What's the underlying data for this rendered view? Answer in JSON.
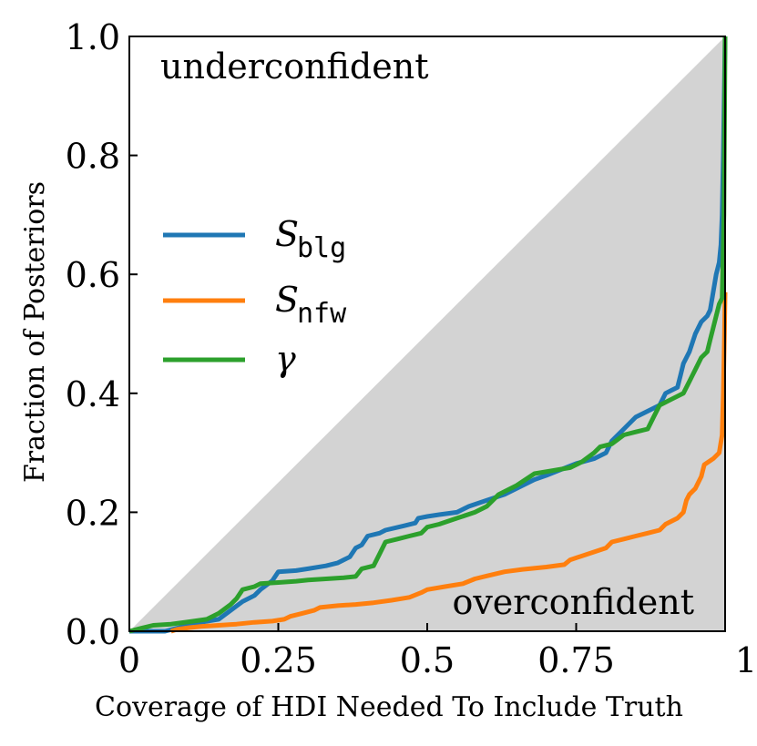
{
  "chart_data": {
    "type": "line",
    "title": "",
    "xlabel": "Coverage of HDI Needed To Include Truth",
    "ylabel": "Fraction of Posteriors",
    "xlim": [
      0,
      1
    ],
    "ylim": [
      0,
      1
    ],
    "x_ticks": [
      {
        "value": 0,
        "label": "0"
      },
      {
        "value": 0.25,
        "label": "0.25"
      },
      {
        "value": 0.5,
        "label": "0.5"
      },
      {
        "value": 0.75,
        "label": "0.75"
      },
      {
        "value": 1,
        "label": "1"
      }
    ],
    "y_ticks": [
      {
        "value": 0,
        "label": "0.0"
      },
      {
        "value": 0.2,
        "label": "0.2"
      },
      {
        "value": 0.4,
        "label": "0.4"
      },
      {
        "value": 0.6,
        "label": "0.6"
      },
      {
        "value": 0.8,
        "label": "0.8"
      },
      {
        "value": 1,
        "label": "1.0"
      }
    ],
    "grid": false,
    "legend_position": "center-left",
    "annotations": {
      "upper": "underconfident",
      "lower": "overconfident"
    },
    "series": [
      {
        "name": "S_blg",
        "label_main": "S",
        "label_sub": "blg",
        "color": "#1f77b4",
        "points": [
          [
            0,
            0
          ],
          [
            0.06,
            0
          ],
          [
            0.08,
            0.005
          ],
          [
            0.1,
            0.01
          ],
          [
            0.12,
            0.015
          ],
          [
            0.15,
            0.02
          ],
          [
            0.17,
            0.035
          ],
          [
            0.19,
            0.05
          ],
          [
            0.21,
            0.06
          ],
          [
            0.22,
            0.07
          ],
          [
            0.24,
            0.085
          ],
          [
            0.25,
            0.1
          ],
          [
            0.28,
            0.102
          ],
          [
            0.3,
            0.105
          ],
          [
            0.33,
            0.11
          ],
          [
            0.35,
            0.115
          ],
          [
            0.36,
            0.12
          ],
          [
            0.37,
            0.125
          ],
          [
            0.38,
            0.14
          ],
          [
            0.39,
            0.145
          ],
          [
            0.4,
            0.16
          ],
          [
            0.42,
            0.165
          ],
          [
            0.43,
            0.17
          ],
          [
            0.46,
            0.177
          ],
          [
            0.48,
            0.182
          ],
          [
            0.485,
            0.19
          ],
          [
            0.5,
            0.193
          ],
          [
            0.52,
            0.196
          ],
          [
            0.55,
            0.2
          ],
          [
            0.56,
            0.205
          ],
          [
            0.57,
            0.21
          ],
          [
            0.6,
            0.22
          ],
          [
            0.63,
            0.23
          ],
          [
            0.66,
            0.245
          ],
          [
            0.68,
            0.255
          ],
          [
            0.7,
            0.262
          ],
          [
            0.72,
            0.27
          ],
          [
            0.75,
            0.282
          ],
          [
            0.78,
            0.29
          ],
          [
            0.8,
            0.3
          ],
          [
            0.81,
            0.32
          ],
          [
            0.83,
            0.34
          ],
          [
            0.85,
            0.36
          ],
          [
            0.87,
            0.37
          ],
          [
            0.89,
            0.38
          ],
          [
            0.9,
            0.4
          ],
          [
            0.91,
            0.405
          ],
          [
            0.92,
            0.41
          ],
          [
            0.925,
            0.43
          ],
          [
            0.93,
            0.45
          ],
          [
            0.94,
            0.47
          ],
          [
            0.95,
            0.5
          ],
          [
            0.96,
            0.52
          ],
          [
            0.97,
            0.53
          ],
          [
            0.975,
            0.54
          ],
          [
            0.98,
            0.57
          ],
          [
            0.985,
            0.6
          ],
          [
            0.99,
            0.62
          ],
          [
            0.993,
            0.65
          ],
          [
            0.995,
            0.7
          ],
          [
            0.997,
            0.8
          ],
          [
            1.0,
            1.0
          ]
        ]
      },
      {
        "name": "S_nfw",
        "label_main": "S",
        "label_sub": "nfw",
        "color": "#ff7f0e",
        "points": [
          [
            0.07,
            0
          ],
          [
            0.08,
            0.003
          ],
          [
            0.1,
            0.006
          ],
          [
            0.12,
            0.008
          ],
          [
            0.15,
            0.01
          ],
          [
            0.18,
            0.012
          ],
          [
            0.21,
            0.015
          ],
          [
            0.24,
            0.017
          ],
          [
            0.26,
            0.02
          ],
          [
            0.27,
            0.025
          ],
          [
            0.29,
            0.03
          ],
          [
            0.31,
            0.035
          ],
          [
            0.32,
            0.04
          ],
          [
            0.35,
            0.043
          ],
          [
            0.38,
            0.045
          ],
          [
            0.41,
            0.048
          ],
          [
            0.44,
            0.052
          ],
          [
            0.47,
            0.057
          ],
          [
            0.49,
            0.065
          ],
          [
            0.5,
            0.07
          ],
          [
            0.53,
            0.075
          ],
          [
            0.56,
            0.08
          ],
          [
            0.58,
            0.088
          ],
          [
            0.6,
            0.093
          ],
          [
            0.63,
            0.1
          ],
          [
            0.66,
            0.104
          ],
          [
            0.7,
            0.108
          ],
          [
            0.73,
            0.112
          ],
          [
            0.74,
            0.12
          ],
          [
            0.77,
            0.13
          ],
          [
            0.8,
            0.14
          ],
          [
            0.81,
            0.15
          ],
          [
            0.83,
            0.155
          ],
          [
            0.85,
            0.16
          ],
          [
            0.87,
            0.165
          ],
          [
            0.89,
            0.17
          ],
          [
            0.9,
            0.18
          ],
          [
            0.92,
            0.19
          ],
          [
            0.93,
            0.2
          ],
          [
            0.935,
            0.22
          ],
          [
            0.94,
            0.23
          ],
          [
            0.95,
            0.24
          ],
          [
            0.96,
            0.26
          ],
          [
            0.965,
            0.28
          ],
          [
            0.98,
            0.29
          ],
          [
            0.99,
            0.3
          ],
          [
            0.995,
            0.33
          ],
          [
            0.997,
            0.4
          ],
          [
            0.999,
            0.5
          ],
          [
            1.0,
            0.57
          ]
        ]
      },
      {
        "name": "gamma",
        "label_main": "γ",
        "label_sub": "",
        "color": "#2ca02c",
        "points": [
          [
            0,
            0
          ],
          [
            0.02,
            0.005
          ],
          [
            0.04,
            0.01
          ],
          [
            0.07,
            0.012
          ],
          [
            0.1,
            0.016
          ],
          [
            0.13,
            0.02
          ],
          [
            0.15,
            0.03
          ],
          [
            0.17,
            0.045
          ],
          [
            0.18,
            0.055
          ],
          [
            0.19,
            0.07
          ],
          [
            0.21,
            0.075
          ],
          [
            0.22,
            0.08
          ],
          [
            0.25,
            0.082
          ],
          [
            0.28,
            0.084
          ],
          [
            0.3,
            0.086
          ],
          [
            0.33,
            0.088
          ],
          [
            0.36,
            0.09
          ],
          [
            0.38,
            0.092
          ],
          [
            0.39,
            0.105
          ],
          [
            0.41,
            0.11
          ],
          [
            0.42,
            0.13
          ],
          [
            0.43,
            0.15
          ],
          [
            0.45,
            0.155
          ],
          [
            0.47,
            0.16
          ],
          [
            0.49,
            0.165
          ],
          [
            0.5,
            0.175
          ],
          [
            0.52,
            0.18
          ],
          [
            0.55,
            0.19
          ],
          [
            0.58,
            0.2
          ],
          [
            0.6,
            0.21
          ],
          [
            0.62,
            0.23
          ],
          [
            0.65,
            0.245
          ],
          [
            0.68,
            0.265
          ],
          [
            0.71,
            0.27
          ],
          [
            0.74,
            0.275
          ],
          [
            0.76,
            0.285
          ],
          [
            0.78,
            0.3
          ],
          [
            0.79,
            0.31
          ],
          [
            0.81,
            0.315
          ],
          [
            0.83,
            0.33
          ],
          [
            0.85,
            0.335
          ],
          [
            0.87,
            0.34
          ],
          [
            0.88,
            0.36
          ],
          [
            0.89,
            0.38
          ],
          [
            0.91,
            0.39
          ],
          [
            0.93,
            0.4
          ],
          [
            0.94,
            0.42
          ],
          [
            0.95,
            0.44
          ],
          [
            0.96,
            0.46
          ],
          [
            0.97,
            0.47
          ],
          [
            0.975,
            0.49
          ],
          [
            0.98,
            0.51
          ],
          [
            0.985,
            0.53
          ],
          [
            0.99,
            0.55
          ],
          [
            0.995,
            0.56
          ],
          [
            0.998,
            0.7
          ],
          [
            1.0,
            1.0
          ]
        ]
      }
    ]
  }
}
